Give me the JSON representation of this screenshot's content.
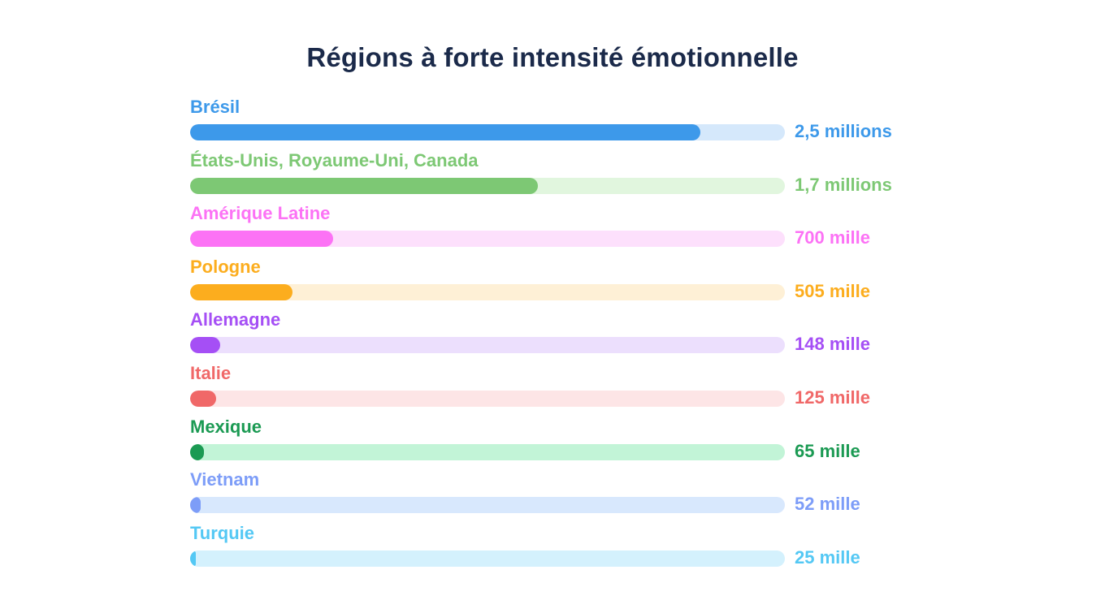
{
  "title": "Régions à forte intensité émotionnelle",
  "chart_data": {
    "type": "bar",
    "orientation": "horizontal",
    "title": "Régions à forte intensité émotionnelle",
    "xlabel": "",
    "ylabel": "",
    "grid": false,
    "legend": "none",
    "categories": [
      "Brésil",
      "États-Unis, Royaume-Uni, Canada",
      "Amérique Latine",
      "Pologne",
      "Allemagne",
      "Italie",
      "Mexique",
      "Vietnam",
      "Turquie"
    ],
    "values": [
      2500000,
      1700000,
      700000,
      505000,
      148000,
      125000,
      65000,
      52000,
      25000
    ],
    "value_labels": [
      "2,5 millions",
      "1,7 millions",
      "700 mille",
      "505 mille",
      "148 mille",
      "125 mille",
      "65 mille",
      "52 mille",
      "25 mille"
    ]
  },
  "rows": [
    {
      "label": "Brésil",
      "value": "2,5 millions",
      "pct": 85.8,
      "color": "#3d99ea",
      "track": "#d5e8fb"
    },
    {
      "label": "États-Unis, Royaume-Uni, Canada",
      "value": "1,7 millions",
      "pct": 58.5,
      "color": "#7dc874",
      "track": "#e1f6de"
    },
    {
      "label": "Amérique Latine",
      "value": "700 mille",
      "pct": 24.0,
      "color": "#fc72f5",
      "track": "#fde0fc"
    },
    {
      "label": "Pologne",
      "value": "505 mille",
      "pct": 17.2,
      "color": "#fcad1e",
      "track": "#fef0d6"
    },
    {
      "label": "Allemagne",
      "value": "148 mille",
      "pct": 5.0,
      "color": "#a54ff5",
      "track": "#ecdffd"
    },
    {
      "label": "Italie",
      "value": "125 mille",
      "pct": 4.4,
      "color": "#f06868",
      "track": "#fde5e6"
    },
    {
      "label": "Mexique",
      "value": "65 mille",
      "pct": 2.3,
      "color": "#1b9a53",
      "track": "#c2f4d7"
    },
    {
      "label": "Vietnam",
      "value": "52 mille",
      "pct": 1.8,
      "color": "#7d9df8",
      "track": "#d8e8fd"
    },
    {
      "label": "Turquie",
      "value": "25 mille",
      "pct": 1.0,
      "color": "#54c8f4",
      "track": "#d4f1fd"
    }
  ]
}
